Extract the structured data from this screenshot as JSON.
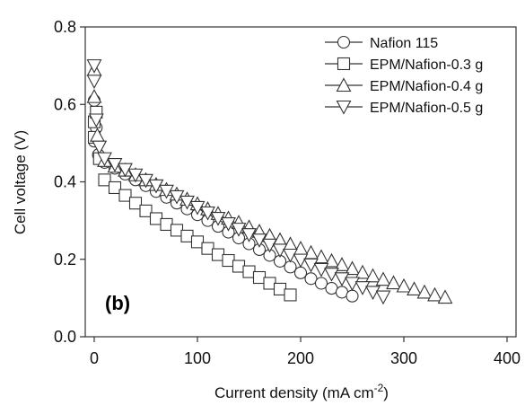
{
  "chart_data": {
    "type": "scatter",
    "panel_label": "(b)",
    "xlabel": "Current density (mA cm",
    "xlabel_sup": "-2",
    "xlabel_close": ")",
    "ylabel": "Cell voltage (V)",
    "xlim": [
      0,
      400
    ],
    "ylim": [
      0.0,
      0.8
    ],
    "x_ticks": [
      0,
      100,
      200,
      300,
      400
    ],
    "y_ticks": [
      0.0,
      0.2,
      0.4,
      0.6,
      0.8
    ],
    "x_tick_labels": [
      "0",
      "100",
      "200",
      "300",
      "400"
    ],
    "y_tick_labels": [
      "0.0",
      "0.2",
      "0.4",
      "0.6",
      "0.8"
    ],
    "grid": false,
    "legend_position": "top-right",
    "series": [
      {
        "name": "Nafion 115",
        "marker": "circle",
        "points": [
          [
            0,
            0.505
          ],
          [
            0,
            0.61
          ],
          [
            2,
            0.54
          ],
          [
            4,
            0.47
          ],
          [
            10,
            0.45
          ],
          [
            20,
            0.435
          ],
          [
            30,
            0.42
          ],
          [
            40,
            0.405
          ],
          [
            50,
            0.39
          ],
          [
            60,
            0.375
          ],
          [
            70,
            0.36
          ],
          [
            80,
            0.345
          ],
          [
            90,
            0.33
          ],
          [
            100,
            0.315
          ],
          [
            110,
            0.3
          ],
          [
            120,
            0.285
          ],
          [
            130,
            0.27
          ],
          [
            140,
            0.255
          ],
          [
            150,
            0.24
          ],
          [
            160,
            0.225
          ],
          [
            170,
            0.21
          ],
          [
            180,
            0.195
          ],
          [
            190,
            0.18
          ],
          [
            200,
            0.165
          ],
          [
            210,
            0.15
          ],
          [
            220,
            0.138
          ],
          [
            230,
            0.125
          ],
          [
            240,
            0.115
          ],
          [
            250,
            0.105
          ]
        ]
      },
      {
        "name": "EPM/Nafion-0.3 g",
        "marker": "square",
        "points": [
          [
            0,
            0.515
          ],
          [
            0,
            0.555
          ],
          [
            2,
            0.58
          ],
          [
            5,
            0.46
          ],
          [
            10,
            0.405
          ],
          [
            20,
            0.385
          ],
          [
            30,
            0.365
          ],
          [
            40,
            0.345
          ],
          [
            50,
            0.325
          ],
          [
            60,
            0.305
          ],
          [
            70,
            0.29
          ],
          [
            80,
            0.275
          ],
          [
            90,
            0.26
          ],
          [
            100,
            0.245
          ],
          [
            110,
            0.228
          ],
          [
            120,
            0.212
          ],
          [
            130,
            0.197
          ],
          [
            140,
            0.182
          ],
          [
            150,
            0.168
          ],
          [
            160,
            0.153
          ],
          [
            170,
            0.138
          ],
          [
            180,
            0.123
          ],
          [
            190,
            0.108
          ]
        ]
      },
      {
        "name": "EPM/Nafion-0.4 g",
        "marker": "triangle-up",
        "points": [
          [
            0,
            0.69
          ],
          [
            0,
            0.62
          ],
          [
            3,
            0.52
          ],
          [
            10,
            0.455
          ],
          [
            20,
            0.44
          ],
          [
            30,
            0.43
          ],
          [
            40,
            0.418
          ],
          [
            50,
            0.405
          ],
          [
            60,
            0.393
          ],
          [
            70,
            0.38
          ],
          [
            80,
            0.368
          ],
          [
            90,
            0.355
          ],
          [
            100,
            0.343
          ],
          [
            110,
            0.33
          ],
          [
            120,
            0.318
          ],
          [
            130,
            0.306
          ],
          [
            140,
            0.295
          ],
          [
            150,
            0.283
          ],
          [
            160,
            0.272
          ],
          [
            170,
            0.261
          ],
          [
            180,
            0.25
          ],
          [
            190,
            0.239
          ],
          [
            200,
            0.228
          ],
          [
            210,
            0.217
          ],
          [
            220,
            0.206
          ],
          [
            230,
            0.196
          ],
          [
            240,
            0.186
          ],
          [
            250,
            0.176
          ],
          [
            260,
            0.166
          ],
          [
            270,
            0.157
          ],
          [
            280,
            0.148
          ],
          [
            290,
            0.139
          ],
          [
            300,
            0.131
          ],
          [
            310,
            0.123
          ],
          [
            320,
            0.115
          ],
          [
            330,
            0.108
          ],
          [
            340,
            0.102
          ]
        ]
      },
      {
        "name": "EPM/Nafion-0.5 g",
        "marker": "triangle-down",
        "points": [
          [
            0,
            0.7
          ],
          [
            0,
            0.66
          ],
          [
            2,
            0.56
          ],
          [
            5,
            0.49
          ],
          [
            10,
            0.46
          ],
          [
            20,
            0.445
          ],
          [
            30,
            0.432
          ],
          [
            40,
            0.418
          ],
          [
            50,
            0.404
          ],
          [
            60,
            0.39
          ],
          [
            70,
            0.376
          ],
          [
            80,
            0.362
          ],
          [
            90,
            0.348
          ],
          [
            100,
            0.334
          ],
          [
            110,
            0.32
          ],
          [
            120,
            0.306
          ],
          [
            130,
            0.292
          ],
          [
            140,
            0.278
          ],
          [
            150,
            0.264
          ],
          [
            160,
            0.25
          ],
          [
            170,
            0.237
          ],
          [
            180,
            0.224
          ],
          [
            190,
            0.211
          ],
          [
            200,
            0.198
          ],
          [
            210,
            0.186
          ],
          [
            220,
            0.174
          ],
          [
            230,
            0.162
          ],
          [
            240,
            0.15
          ],
          [
            250,
            0.138
          ],
          [
            260,
            0.127
          ],
          [
            270,
            0.115
          ],
          [
            280,
            0.103
          ]
        ]
      }
    ]
  }
}
